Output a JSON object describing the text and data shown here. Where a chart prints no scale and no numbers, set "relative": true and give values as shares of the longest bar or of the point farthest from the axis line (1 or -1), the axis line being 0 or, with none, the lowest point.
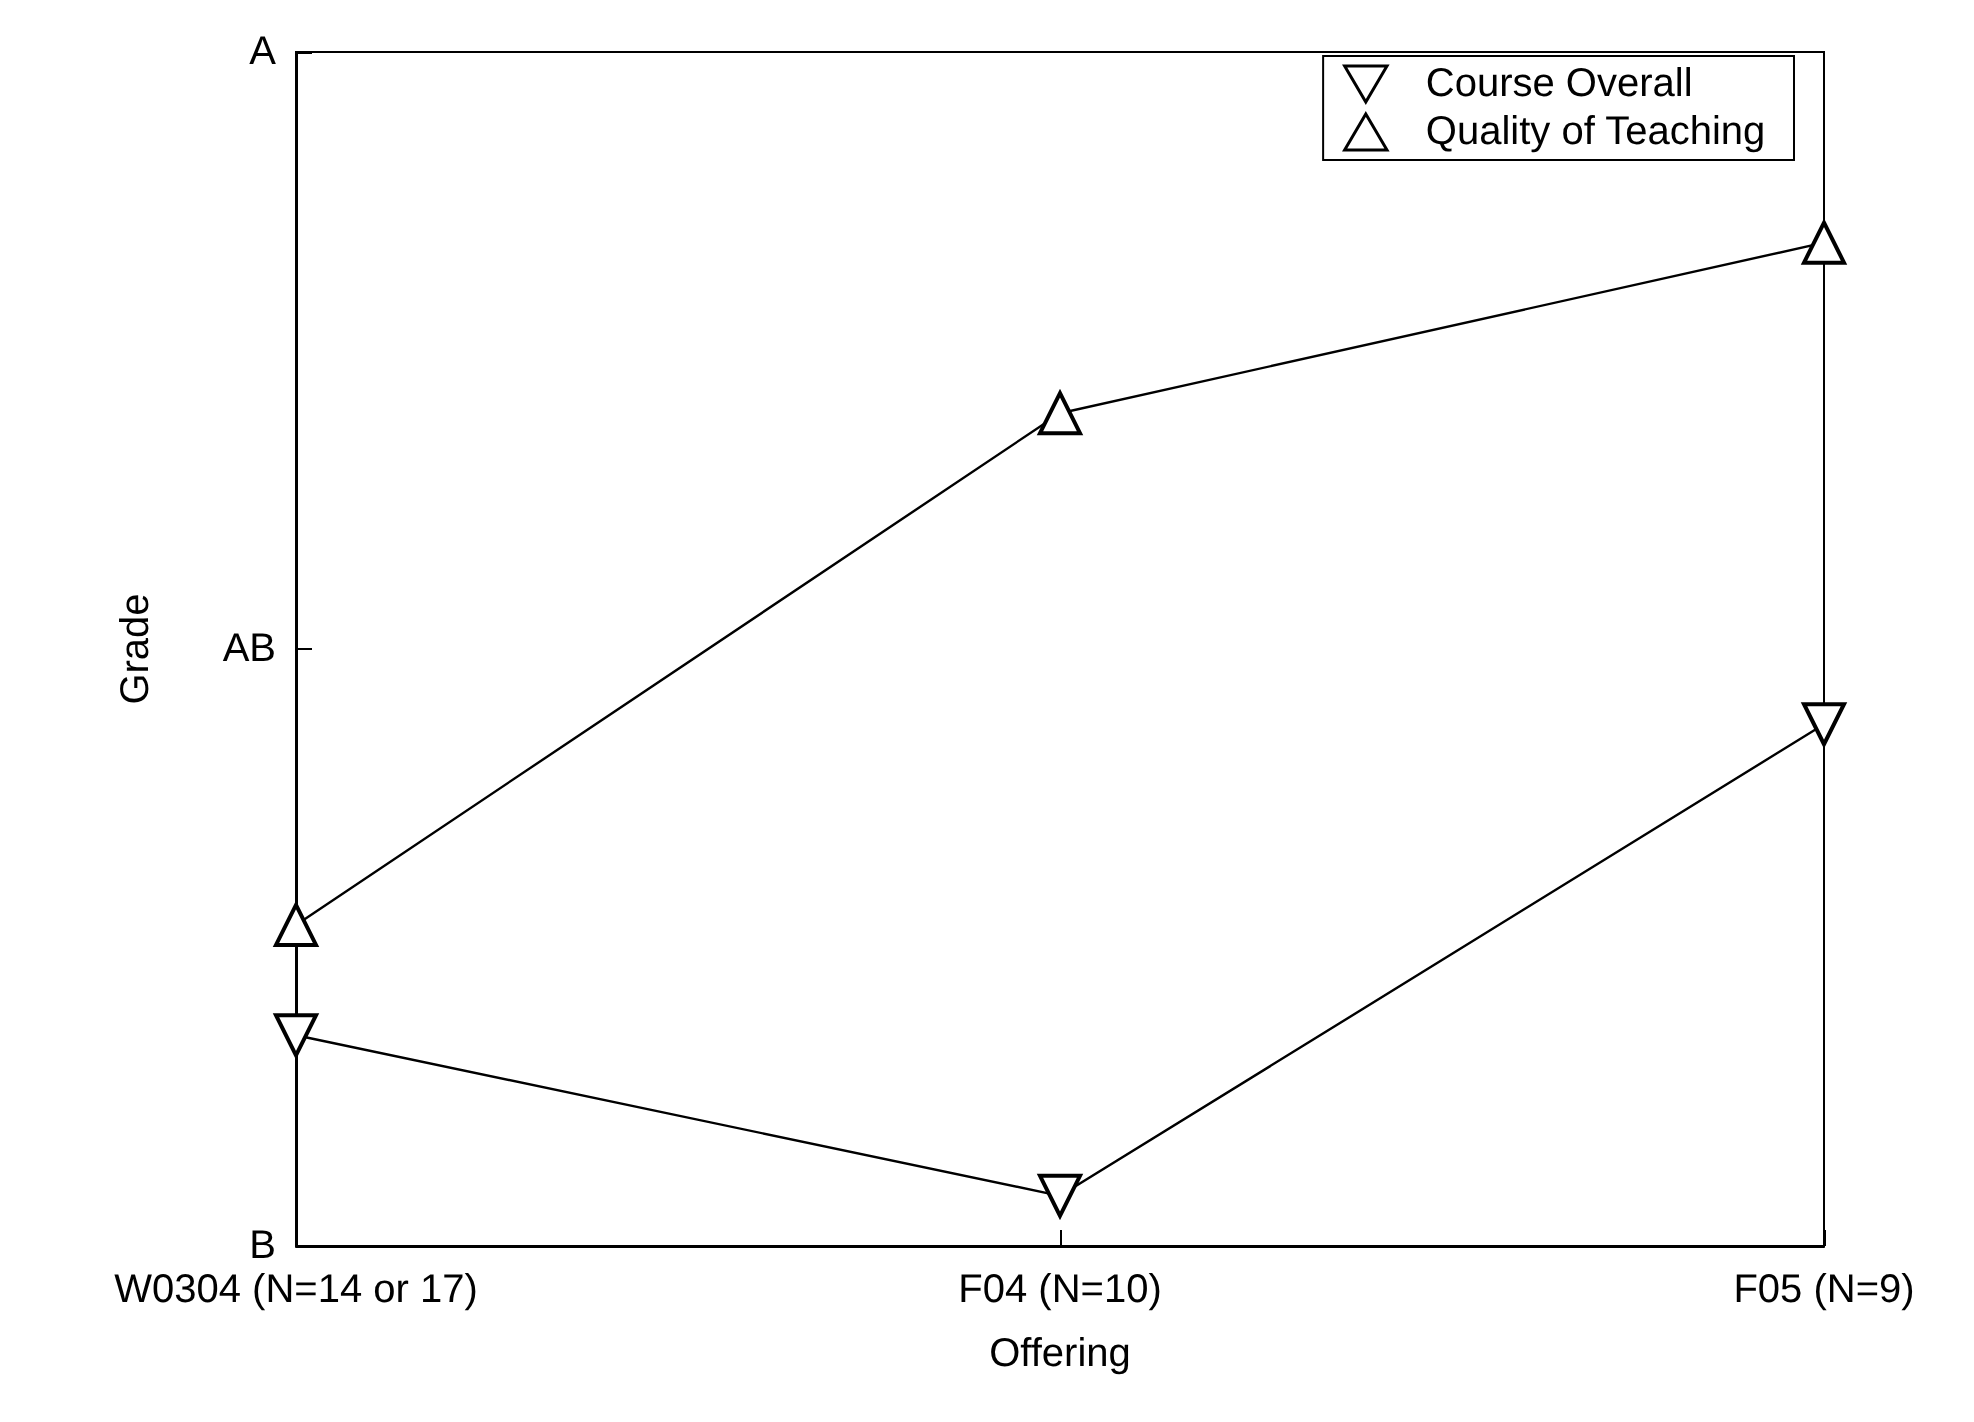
{
  "chart_data": {
    "type": "line",
    "xlabel": "Offering",
    "ylabel": "Grade",
    "categories": [
      "W0304 (N=14 or 17)",
      "F04 (N=10)",
      "F05 (N=9)"
    ],
    "relative": true,
    "series": [
      {
        "name": "Course Overall",
        "color": "#000000",
        "marker": "triangle-down",
        "values": [
          0.21,
          0.05,
          0.52
        ]
      },
      {
        "name": "Quality of Teaching",
        "color": "#000000",
        "marker": "triangle",
        "values": [
          0.32,
          0.83,
          1
        ]
      }
    ],
    "annotations": [
      "B",
      "AB",
      "A"
    ],
    "grid": false,
    "legend": "top right",
    "line_style": "solid"
  }
}
